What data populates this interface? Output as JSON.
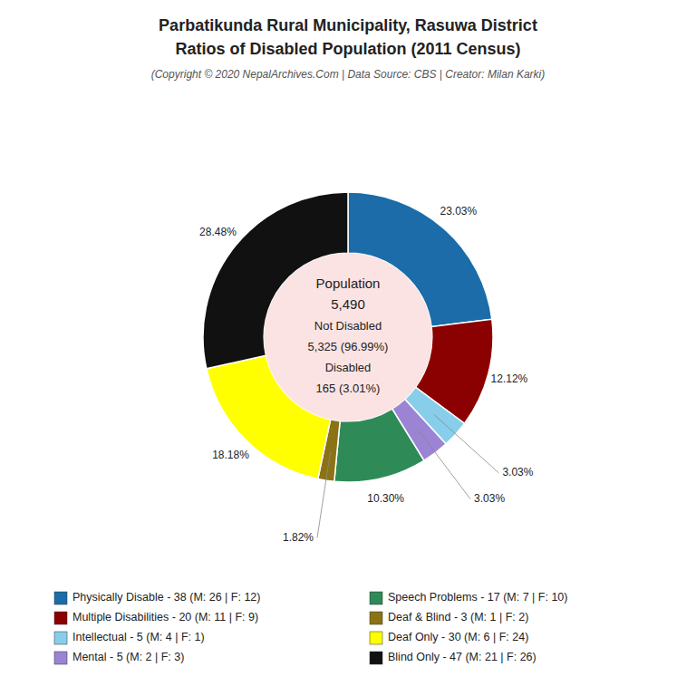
{
  "chart_data": {
    "type": "donut",
    "title": [
      "Parbatikunda Rural Municipality, Rasuwa District",
      "Ratios of Disabled Population (2011 Census)"
    ],
    "subtitle": "(Copyright © 2020 NepalArchives.Com | Data Source: CBS | Creator: Milan Karki)",
    "categories": [
      "Physically Disable - 38 (M: 26 | F: 12)",
      "Multiple Disabilities - 20 (M: 11 | F: 9)",
      "Intellectual - 5 (M: 4 | F: 1)",
      "Mental - 5 (M: 2 | F: 3)",
      "Speech Problems - 17 (M: 7 | F: 10)",
      "Deaf & Blind - 3 (M: 1 | F: 2)",
      "Deaf Only - 30 (M: 6 | F: 24)",
      "Blind Only - 47 (M: 21 | F: 26)"
    ],
    "values": [
      23.03,
      12.12,
      3.03,
      3.03,
      10.3,
      1.82,
      18.18,
      28.48
    ],
    "value_labels": [
      "23.03%",
      "12.12%",
      "3.03%",
      "3.03%",
      "10.30%",
      "1.82%",
      "18.18%",
      "28.48%"
    ],
    "colors": [
      "#1b6ca8",
      "#8b0000",
      "#87ceeb",
      "#9b84d4",
      "#2e8b57",
      "#8b7315",
      "#ffff00",
      "#111111"
    ],
    "annotations": [
      "Population",
      "5,490",
      "Not Disabled",
      "5,325 (96.99%)",
      "Disabled",
      "165 (3.01%)"
    ],
    "data_labels": true,
    "legend": "bottom"
  }
}
